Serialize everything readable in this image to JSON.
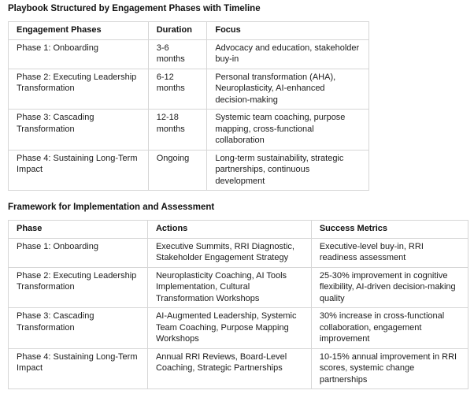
{
  "page": {
    "background_color": "#ffffff",
    "text_color": "#1b1b1b",
    "border_color": "#d6d6d6"
  },
  "tables": [
    {
      "title": "Playbook Structured by Engagement Phases with Timeline",
      "columns": [
        "Engagement Phases",
        "Duration",
        "Focus"
      ],
      "rows": [
        [
          "Phase 1: Onboarding",
          "3-6 months",
          "Advocacy and education, stakeholder buy-in"
        ],
        [
          "Phase 2: Executing Leadership Transformation",
          "6-12 months",
          "Personal transformation (AHA), Neuroplasticity, AI-enhanced decision-making"
        ],
        [
          "Phase 3: Cascading Transformation",
          "12-18 months",
          "Systemic team coaching, purpose mapping, cross-functional collaboration"
        ],
        [
          "Phase 4: Sustaining Long-Term Impact",
          "Ongoing",
          "Long-term sustainability, strategic partnerships, continuous development"
        ]
      ]
    },
    {
      "title": "Framework for Implementation and Assessment",
      "columns": [
        "Phase",
        "Actions",
        "Success Metrics"
      ],
      "rows": [
        [
          "Phase 1: Onboarding",
          "Executive Summits, RRI Diagnostic, Stakeholder Engagement Strategy",
          "Executive-level buy-in, RRI readiness assessment"
        ],
        [
          "Phase 2: Executing Leadership Transformation",
          "Neuroplasticity Coaching, AI Tools Implementation, Cultural Transformation Workshops",
          "25-30% improvement in cognitive flexibility, AI-driven decision-making quality"
        ],
        [
          "Phase 3: Cascading Transformation",
          "AI-Augmented Leadership, Systemic Team Coaching, Purpose Mapping Workshops",
          "30% increase in cross-functional collaboration, engagement improvement"
        ],
        [
          "Phase 4: Sustaining Long-Term Impact",
          "Annual RRI Reviews, Board-Level Coaching, Strategic Partnerships",
          "10-15% annual improvement in RRI scores, systemic change partnerships"
        ]
      ]
    }
  ]
}
